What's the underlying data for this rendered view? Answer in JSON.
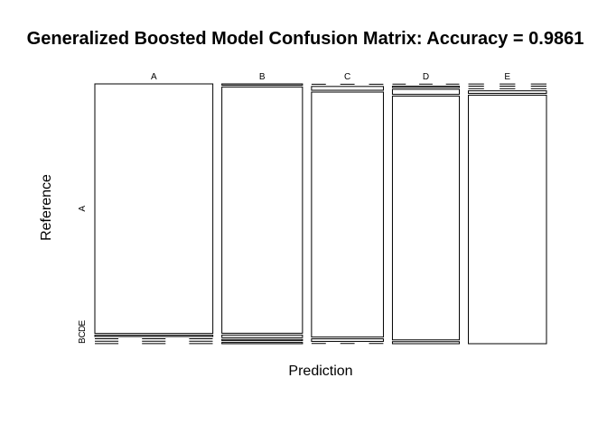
{
  "chart_data": {
    "type": "mosaic",
    "title": "Generalized Boosted Model Confusion Matrix: Accuracy = 0.9861",
    "xlabel": "Prediction",
    "ylabel": "Reference",
    "x_categories": [
      "A",
      "B",
      "C",
      "D",
      "E"
    ],
    "y_categories": [
      "A",
      "B",
      "C",
      "D",
      "E"
    ],
    "y_tick_labels": [
      "A",
      "B",
      "C",
      "D",
      "E"
    ],
    "column_proportions": [
      0.284,
      0.194,
      0.173,
      0.161,
      0.188
    ],
    "cells": [
      [
        0.988,
        0.005,
        0.003,
        0.003,
        0.001
      ],
      [
        0.005,
        0.975,
        0.01,
        0.005,
        0.005
      ],
      [
        0.003,
        0.015,
        0.97,
        0.01,
        0.002
      ],
      [
        0.002,
        0.005,
        0.02,
        0.965,
        0.008
      ],
      [
        0.001,
        0.002,
        0.003,
        0.01,
        0.984
      ]
    ]
  }
}
